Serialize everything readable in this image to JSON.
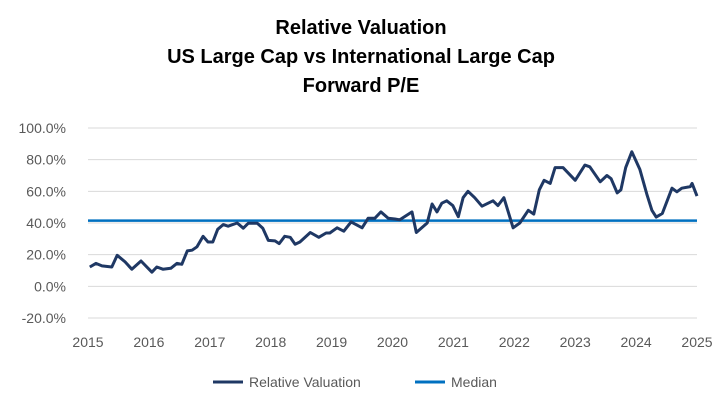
{
  "chart_data": {
    "type": "line",
    "title": [
      "Relative Valuation",
      "US Large Cap vs International Large Cap",
      "Forward P/E"
    ],
    "xlabel": "",
    "ylabel": "",
    "xlim": [
      2015,
      2025
    ],
    "ylim": [
      -20,
      100
    ],
    "x_ticks": [
      "2015",
      "2016",
      "2017",
      "2018",
      "2019",
      "2020",
      "2021",
      "2022",
      "2023",
      "2024",
      "2025"
    ],
    "y_ticks": [
      "-20.0%",
      "0.0%",
      "20.0%",
      "40.0%",
      "60.0%",
      "80.0%",
      "100.0%"
    ],
    "grid": "horizontal",
    "legend": "bottom",
    "series": [
      {
        "name": "Relative Valuation",
        "color": "#1f3864",
        "x": [
          2015.03,
          2015.13,
          2015.23,
          2015.39,
          2015.48,
          2015.61,
          2015.72,
          2015.87,
          2016.05,
          2016.13,
          2016.23,
          2016.36,
          2016.46,
          2016.54,
          2016.63,
          2016.71,
          2016.79,
          2016.89,
          2016.97,
          2017.05,
          2017.13,
          2017.22,
          2017.3,
          2017.45,
          2017.55,
          2017.63,
          2017.78,
          2017.87,
          2017.96,
          2018.07,
          2018.14,
          2018.23,
          2018.32,
          2018.4,
          2018.48,
          2018.65,
          2018.79,
          2018.91,
          2018.97,
          2019.09,
          2019.2,
          2019.32,
          2019.5,
          2019.6,
          2019.71,
          2019.81,
          2019.93,
          2020.04,
          2020.12,
          2020.32,
          2020.39,
          2020.57,
          2020.65,
          2020.73,
          2020.81,
          2020.89,
          2020.99,
          2021.08,
          2021.16,
          2021.24,
          2021.35,
          2021.47,
          2021.65,
          2021.73,
          2021.83,
          2021.98,
          2022.09,
          2022.23,
          2022.32,
          2022.41,
          2022.49,
          2022.59,
          2022.67,
          2022.8,
          2023.0,
          2023.16,
          2023.24,
          2023.41,
          2023.52,
          2023.59,
          2023.69,
          2023.75,
          2023.83,
          2023.93,
          2024.06,
          2024.18,
          2024.26,
          2024.33,
          2024.43,
          2024.59,
          2024.67,
          2024.75,
          2024.89,
          2024.92,
          2025.0
        ],
        "y": [
          12.2,
          14.5,
          12.9,
          12.2,
          19.6,
          15.4,
          10.8,
          16,
          8.9,
          12.2,
          10.8,
          11.4,
          14.5,
          13.9,
          22.4,
          22.8,
          25,
          31.6,
          28,
          28,
          36,
          39,
          38,
          40,
          36.7,
          39.8,
          39.8,
          36.7,
          29,
          28.7,
          27,
          31.6,
          31,
          26.6,
          28,
          34,
          31,
          33.7,
          33.7,
          37,
          34.8,
          40.7,
          37,
          43,
          43,
          47,
          43,
          42.5,
          42,
          47,
          34,
          40,
          52,
          47,
          52.5,
          54,
          51,
          44,
          56,
          60,
          56,
          50.6,
          54,
          51,
          56,
          37,
          40,
          48,
          45.6,
          61,
          67,
          65,
          75,
          75,
          67,
          76.6,
          75.5,
          66,
          70,
          68,
          59,
          61,
          75,
          85,
          74,
          57.6,
          48,
          43.7,
          46,
          62,
          59.7,
          62,
          63,
          65,
          57
        ]
      },
      {
        "name": "Median",
        "color": "#0070c0",
        "y_constant": 41.5
      }
    ]
  }
}
